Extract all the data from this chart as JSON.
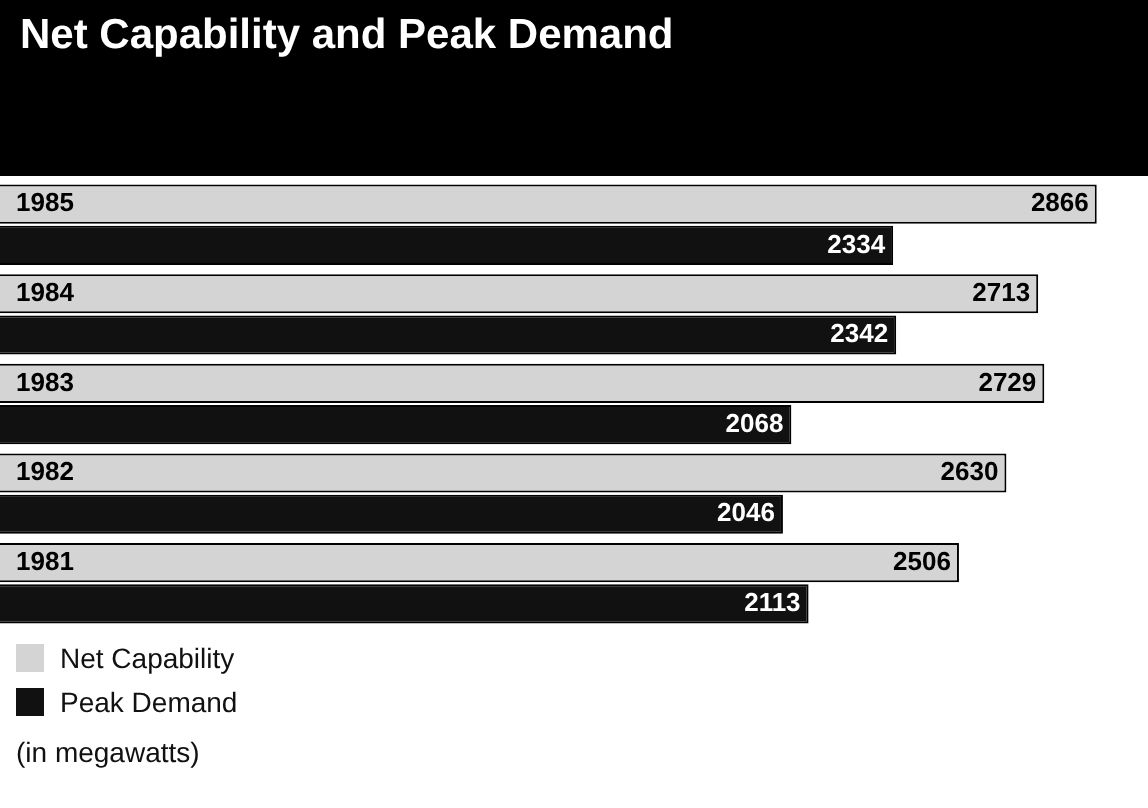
{
  "chart_data": {
    "type": "bar",
    "orientation": "horizontal",
    "title": "Net Capability and Peak Demand",
    "categories": [
      "1985",
      "1984",
      "1983",
      "1982",
      "1981"
    ],
    "series": [
      {
        "name": "Net Capability",
        "color": "#d4d4d4",
        "values": [
          2866,
          2713,
          2729,
          2630,
          2506
        ]
      },
      {
        "name": "Peak Demand",
        "color": "#111111",
        "values": [
          2334,
          2342,
          2068,
          2046,
          2113
        ]
      }
    ],
    "data_labels": true,
    "legend": "bottom left",
    "annotations": [
      "(in megawatts)"
    ]
  }
}
